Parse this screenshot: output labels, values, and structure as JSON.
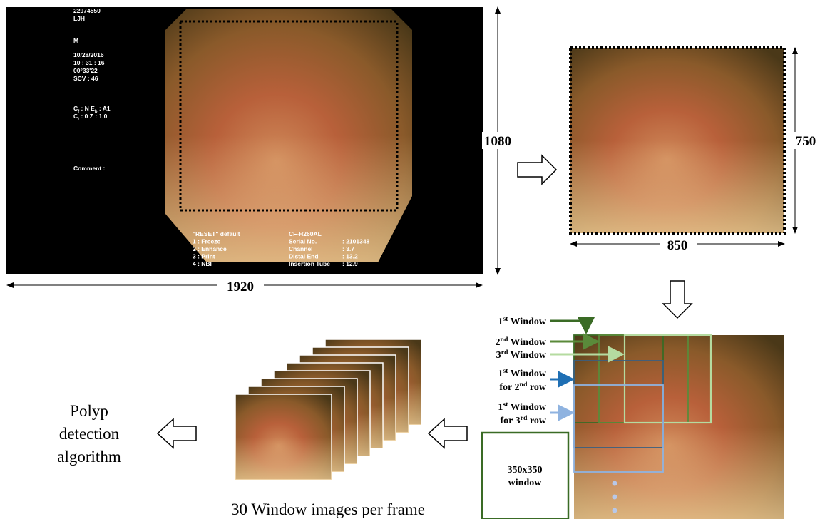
{
  "overlay": {
    "left": [
      "22974550",
      "LJH",
      "M",
      "10/28/2016",
      "10 : 31 : 16",
      "00°33'22",
      "SCV : 46"
    ],
    "color_settings": [
      [
        {
          "t": "C"
        },
        {
          "sub": "f"
        },
        {
          "t": " : N  E"
        },
        {
          "sub": "b"
        },
        {
          "t": " : A1"
        }
      ],
      [
        {
          "t": "C"
        },
        {
          "sub": "t"
        },
        {
          "t": " : 0  Z : 1.0"
        }
      ]
    ],
    "comment": "Comment :",
    "menu": [
      "\"RESET\" default",
      "1 : Freeze",
      "2 : Enhance",
      "3 : Print",
      "4 : NBI"
    ],
    "model": "CF-H260AL",
    "scope": [
      [
        "Serial No.",
        ": 2101348"
      ],
      [
        "Channel",
        ": 3.7"
      ],
      [
        "Distal End",
        ": 13.2"
      ],
      [
        "Insertion Tube",
        ": 12.9"
      ]
    ]
  },
  "dimensions": {
    "width": "1920",
    "height": "1080",
    "crop_height": "750",
    "crop_width": "850"
  },
  "windows": [
    [
      [
        {
          "t": "1"
        },
        {
          "sup": "st"
        },
        {
          "t": " Window"
        }
      ]
    ],
    [
      [
        {
          "t": "2"
        },
        {
          "sup": "nd"
        },
        {
          "t": " Window"
        }
      ]
    ],
    [
      [
        {
          "t": "3"
        },
        {
          "sup": "rd"
        },
        {
          "t": " Window"
        }
      ]
    ],
    [
      [
        {
          "t": "1"
        },
        {
          "sup": "st"
        },
        {
          "t": " Window"
        }
      ],
      [
        {
          "t": "for 2"
        },
        {
          "sup": "nd"
        },
        {
          "t": " row"
        }
      ]
    ],
    [
      [
        {
          "t": "1"
        },
        {
          "sup": "st"
        },
        {
          "t": " Window"
        }
      ],
      [
        {
          "t": "for 3"
        },
        {
          "sup": "rd"
        },
        {
          "t": " row"
        }
      ]
    ]
  ],
  "window_size": [
    "350x350",
    "window"
  ],
  "stack_caption": "30 Window images per frame",
  "algorithm": [
    "Polyp",
    "detection",
    "algorithm"
  ]
}
